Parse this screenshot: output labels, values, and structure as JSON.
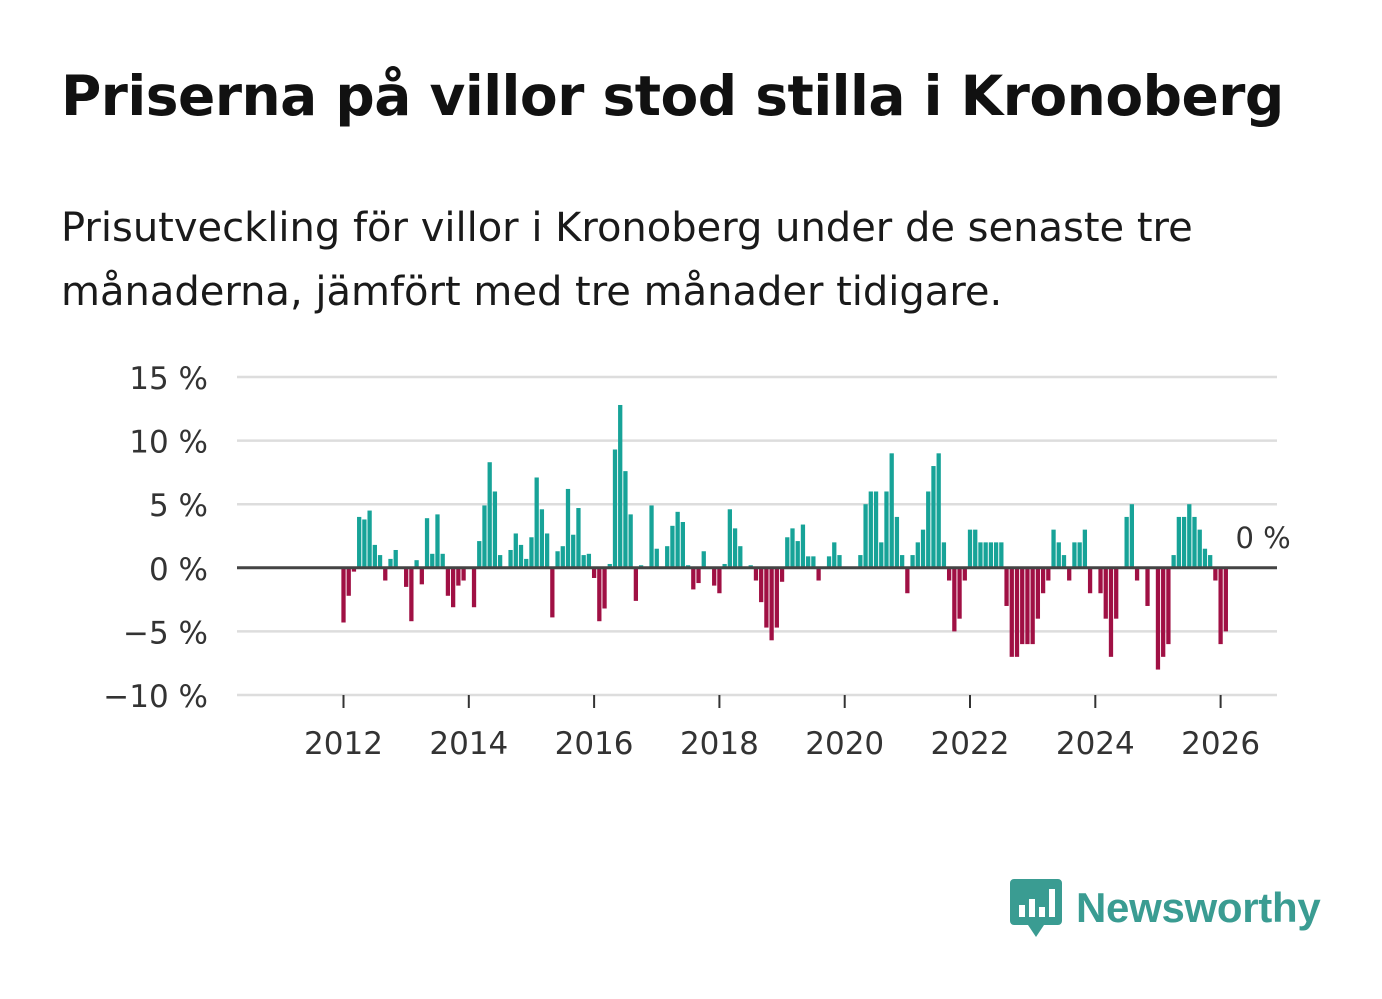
{
  "title": "Priserna på villor stod stilla i Kronoberg",
  "subtitle": "Prisutveckling för villor i Kronoberg under de senaste tre månaderna, jämfört med tre månader tidigare.",
  "colors": {
    "positive": "#17a398",
    "negative": "#a01044",
    "grid": "#dddddd",
    "zero": "#444444",
    "brand": "#3a9c92"
  },
  "brand": {
    "name": "Newsworthy",
    "icon": "bar-chart-speech-icon"
  },
  "chart_data": {
    "type": "bar",
    "title": "Priserna på villor stod stilla i Kronoberg",
    "xlabel": "",
    "ylabel": "",
    "unit": "%",
    "y_ticks": [
      15,
      10,
      5,
      0,
      -5,
      -10
    ],
    "y_tick_labels": [
      "15 %",
      "10 %",
      "5 %",
      "0 %",
      "−5 %",
      "−10 %"
    ],
    "x_ticks": [
      2012,
      2014,
      2016,
      2018,
      2020,
      2022,
      2024,
      2026
    ],
    "x_tick_labels": [
      "2012",
      "2014",
      "2016",
      "2018",
      "2020",
      "2022",
      "2024",
      "2026"
    ],
    "ylim": [
      -10,
      15
    ],
    "xlim": [
      2010.3,
      2026.9
    ],
    "start": 2012.0,
    "interval_months": 1,
    "last_label": "0 %",
    "values": [
      -4.3,
      -2.2,
      -0.3,
      4.0,
      3.8,
      4.5,
      1.8,
      1.0,
      -1.0,
      0.7,
      1.4,
      0,
      -1.5,
      -4.2,
      0.6,
      -1.3,
      3.9,
      1.1,
      4.2,
      1.1,
      -2.2,
      -3.1,
      -1.4,
      -1.0,
      0,
      -3.1,
      2.1,
      4.9,
      8.3,
      6.0,
      1.0,
      0,
      1.4,
      2.7,
      1.8,
      0.7,
      2.4,
      7.1,
      4.6,
      2.7,
      -3.9,
      1.3,
      1.7,
      6.2,
      2.6,
      4.7,
      1.0,
      1.1,
      -0.8,
      -4.2,
      -3.2,
      0.3,
      9.3,
      12.8,
      7.6,
      4.2,
      -2.6,
      0.2,
      0,
      4.9,
      1.5,
      0,
      1.7,
      3.3,
      4.4,
      3.6,
      0.2,
      -1.7,
      -1.2,
      1.3,
      0,
      -1.4,
      -2.0,
      0.3,
      4.6,
      3.1,
      1.7,
      0,
      0.2,
      -1.0,
      -2.7,
      -4.7,
      -5.7,
      -4.7,
      -1.1,
      2.4,
      3.1,
      2.1,
      3.4,
      0.9,
      0.9,
      -1.0,
      0,
      0.9,
      2.0,
      1.0,
      0,
      0,
      0,
      1.0,
      5.0,
      6.0,
      6.0,
      2.0,
      6.0,
      9.0,
      4.0,
      1.0,
      -2.0,
      1.0,
      2.0,
      3.0,
      6.0,
      8.0,
      9.0,
      2.0,
      -1.0,
      -5.0,
      -4.0,
      -1.0,
      3.0,
      3.0,
      2.0,
      2.0,
      2.0,
      2.0,
      2.0,
      -3.0,
      -7.0,
      -7.0,
      -6.0,
      -6.0,
      -6.0,
      -4.0,
      -2.0,
      -1.0,
      3.0,
      2.0,
      1.0,
      -1.0,
      2.0,
      2.0,
      3.0,
      -2.0,
      0,
      -2.0,
      -4.0,
      -7.0,
      -4.0,
      0,
      4.0,
      5.0,
      -1.0,
      0,
      -3.0,
      0,
      -8.0,
      -7.0,
      -6.0,
      1.0,
      4.0,
      4.0,
      5.0,
      4.0,
      3.0,
      1.5,
      1.0,
      -1.0,
      -6.0,
      -5.0,
      0
    ]
  }
}
